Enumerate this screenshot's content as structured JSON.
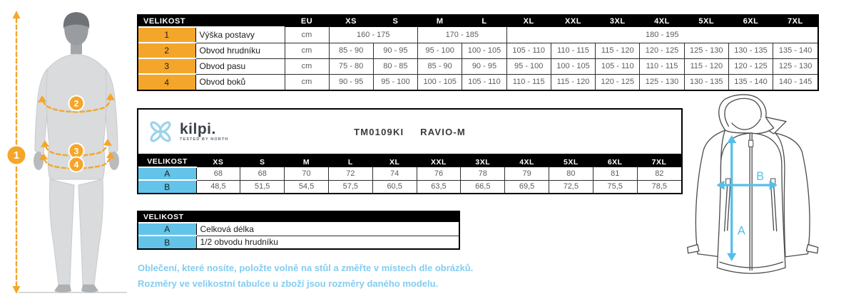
{
  "colors": {
    "accent_orange": "#F4A62A",
    "accent_blue": "#63C3E9",
    "note_blue": "#84CCF0",
    "arrow_blue": "#55BEE9",
    "header_black": "#000000"
  },
  "top_table": {
    "velikost_label": "VELIKOST",
    "eu_label": "EU",
    "sizes": [
      "XS",
      "S",
      "M",
      "L",
      "XL",
      "XXL",
      "3XL",
      "4XL",
      "5XL",
      "6XL",
      "7XL"
    ],
    "rows": [
      {
        "num": "1",
        "label": "Výška postavy",
        "unit": "cm",
        "spans": [
          {
            "text": "160 - 175",
            "cols": 2
          },
          {
            "text": "170 - 185",
            "cols": 2
          },
          {
            "text": "180 - 195",
            "cols": 7
          }
        ]
      },
      {
        "num": "2",
        "label": "Obvod hrudníku",
        "unit": "cm",
        "values": [
          "85 - 90",
          "90 - 95",
          "95 - 100",
          "100 - 105",
          "105 - 110",
          "110 - 115",
          "115 - 120",
          "120 - 125",
          "125 - 130",
          "130 - 135",
          "135 - 140"
        ]
      },
      {
        "num": "3",
        "label": "Obvod pasu",
        "unit": "cm",
        "values": [
          "75 - 80",
          "80 - 85",
          "85 - 90",
          "90 - 95",
          "95 - 100",
          "100 - 105",
          "105 - 110",
          "110 - 115",
          "115 - 120",
          "120 - 125",
          "125 - 130"
        ]
      },
      {
        "num": "4",
        "label": "Obvod boků",
        "unit": "cm",
        "values": [
          "90 - 95",
          "95 - 100",
          "100 - 105",
          "105 - 110",
          "110 - 115",
          "115 - 120",
          "120 - 125",
          "125 - 130",
          "130 - 135",
          "135 - 140",
          "140 - 145"
        ]
      }
    ]
  },
  "product": {
    "brand": "kilpi.",
    "tagline": "TESTED BY NORTH",
    "code": "TM0109KI",
    "name": "RAVIO-M",
    "table": {
      "velikost_label": "VELIKOST",
      "sizes": [
        "XS",
        "S",
        "M",
        "L",
        "XL",
        "XXL",
        "3XL",
        "4XL",
        "5XL",
        "6XL",
        "7XL"
      ],
      "rows": [
        {
          "key": "A",
          "values": [
            "68",
            "68",
            "70",
            "72",
            "74",
            "76",
            "78",
            "79",
            "80",
            "81",
            "82"
          ]
        },
        {
          "key": "B",
          "values": [
            "48,5",
            "51,5",
            "54,5",
            "57,5",
            "60,5",
            "63,5",
            "66,5",
            "69,5",
            "72,5",
            "75,5",
            "78,5"
          ]
        }
      ]
    }
  },
  "legend": {
    "velikost_label": "VELIKOST",
    "rows": [
      {
        "key": "A",
        "label": "Celková délka"
      },
      {
        "key": "B",
        "label": "1/2 obvodu hrudníku"
      }
    ]
  },
  "notes": [
    "Oblečení, které nosíte, položte volně na stůl a změřte v místech dle obrázků.",
    "Rozměry ve velikostní tabulce u zboží jsou rozměry daného modelu."
  ],
  "figure": {
    "markers": [
      "1",
      "2",
      "3",
      "4"
    ]
  },
  "jacket": {
    "label_a": "A",
    "label_b": "B"
  }
}
